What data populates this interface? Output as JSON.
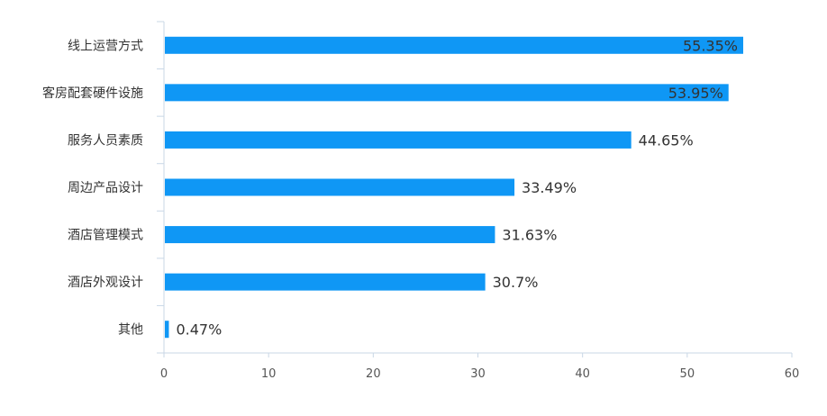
{
  "chart_data": {
    "type": "bar",
    "orientation": "horizontal",
    "categories": [
      "线上运营方式",
      "客房配套硬件设施",
      "服务人员素质",
      "周边产品设计",
      "酒店管理模式",
      "酒店外观设计",
      "其他"
    ],
    "values": [
      55.35,
      53.95,
      44.65,
      33.49,
      31.63,
      30.7,
      0.47
    ],
    "data_labels": [
      "55.35%",
      "53.95%",
      "44.65%",
      "33.49%",
      "31.63%",
      "30.7%",
      "0.47%"
    ],
    "xlim": [
      0,
      60
    ],
    "x_ticks": [
      "0",
      "10",
      "20",
      "30",
      "40",
      "50",
      "60"
    ],
    "title": "",
    "xlabel": "",
    "ylabel": "",
    "grid": false,
    "bar_color": "#0f97f5",
    "axis_color": "#c9d7e6"
  }
}
